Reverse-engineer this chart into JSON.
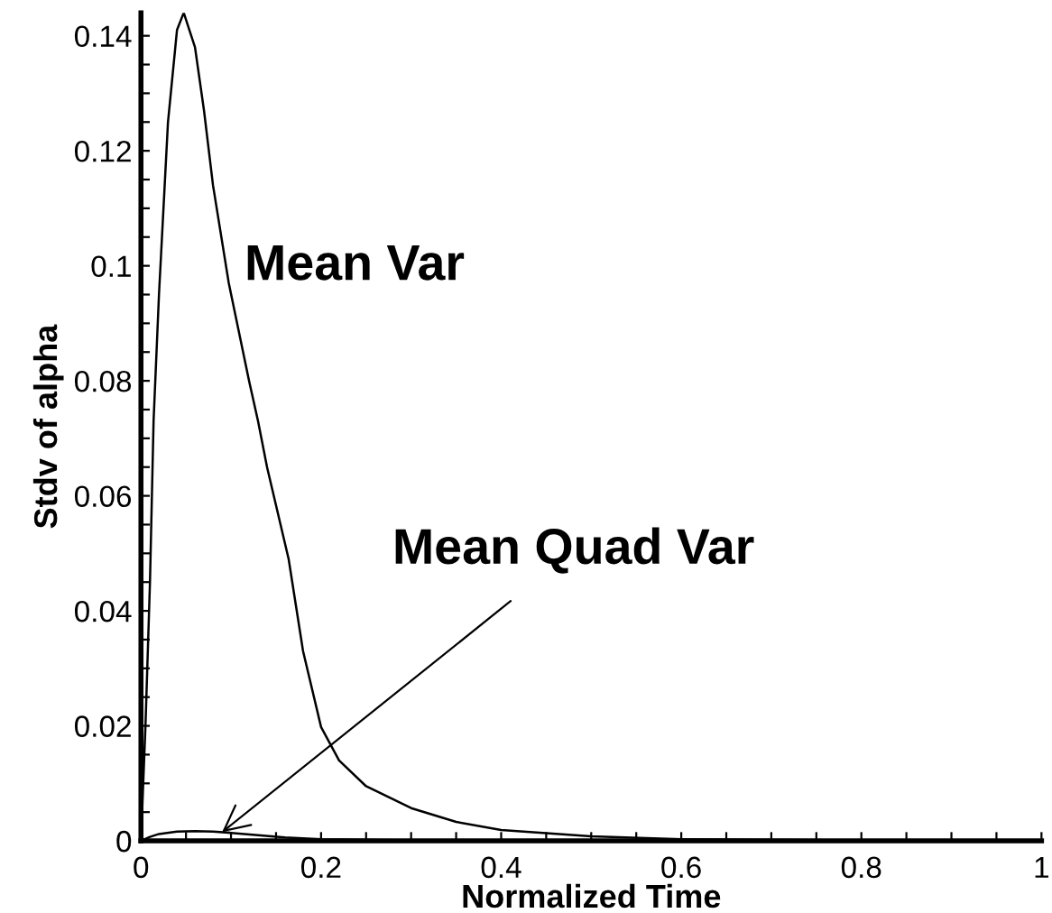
{
  "chart_data": {
    "type": "line",
    "xlabel": "Normalized Time",
    "ylabel": "Stdv of alpha",
    "series": [
      {
        "color": "#000000",
        "x": [
          0,
          0.005,
          0.01,
          0.014,
          0.02,
          0.03,
          0.04,
          0.0475,
          0.06,
          0.07,
          0.08,
          0.0975,
          0.12,
          0.13,
          0.14,
          0.164,
          0.18,
          0.2,
          0.22,
          0.25,
          0.3,
          0.35,
          0.4,
          0.5,
          0.6,
          0.8,
          1
        ],
        "values": [
          0,
          0.02,
          0.045,
          0.073,
          0.095,
          0.125,
          0.141,
          0.144,
          0.138,
          0.127,
          0.114,
          0.097,
          0.08,
          0.073,
          0.065,
          0.049,
          0.033,
          0.0198,
          0.014,
          0.0095,
          0.0057,
          0.0033,
          0.0019,
          0.0008,
          0.0003,
          0.0001,
          0
        ]
      },
      {
        "color": "#000000",
        "x": [
          0,
          0.01,
          0.02,
          0.04,
          0.06,
          0.08,
          0.1,
          0.13,
          0.16,
          0.2,
          0.3,
          0.5,
          1
        ],
        "values": [
          0,
          0.0007,
          0.0012,
          0.0016,
          0.0017,
          0.0016,
          0.0014,
          0.001,
          0.0006,
          0.0003,
          0.0001,
          0,
          0
        ]
      }
    ],
    "xlim": [
      0,
      1
    ],
    "ylim": [
      0,
      0.144
    ],
    "xticks": [
      0,
      {
        "value": 0.05,
        "label": null
      },
      {
        "value": 0.1,
        "label": null
      },
      {
        "value": 0.15,
        "label": null
      },
      0.2,
      {
        "value": 0.25,
        "label": null
      },
      {
        "value": 0.3,
        "label": null
      },
      {
        "value": 0.35,
        "label": null
      },
      0.4,
      {
        "value": 0.45,
        "label": null
      },
      {
        "value": 0.5,
        "label": null
      },
      {
        "value": 0.55,
        "label": null
      },
      0.6,
      {
        "value": 0.65,
        "label": null
      },
      {
        "value": 0.7,
        "label": null
      },
      {
        "value": 0.75,
        "label": null
      },
      0.8,
      {
        "value": 0.85,
        "label": null
      },
      {
        "value": 0.9,
        "label": null
      },
      {
        "value": 0.95,
        "label": null
      },
      1
    ],
    "yticks": [
      0,
      {
        "value": 0.005,
        "label": null
      },
      {
        "value": 0.01,
        "label": null
      },
      {
        "value": 0.015,
        "label": null
      },
      0.02,
      {
        "value": 0.025,
        "label": null
      },
      {
        "value": 0.03,
        "label": null
      },
      {
        "value": 0.035,
        "label": null
      },
      0.04,
      {
        "value": 0.045,
        "label": null
      },
      {
        "value": 0.05,
        "label": null
      },
      {
        "value": 0.055,
        "label": null
      },
      0.06,
      {
        "value": 0.065,
        "label": null
      },
      {
        "value": 0.07,
        "label": null
      },
      {
        "value": 0.075,
        "label": null
      },
      0.08,
      {
        "value": 0.085,
        "label": null
      },
      {
        "value": 0.09,
        "label": null
      },
      {
        "value": 0.095,
        "label": null
      },
      0.1,
      {
        "value": 0.105,
        "label": null
      },
      {
        "value": 0.11,
        "label": null
      },
      {
        "value": 0.115,
        "label": null
      },
      0.12,
      {
        "value": 0.125,
        "label": null
      },
      {
        "value": 0.13,
        "label": null
      },
      {
        "value": 0.135,
        "label": null
      },
      0.14
    ],
    "annotations": [
      "Mean Var",
      {
        "text": "Mean Quad Var",
        "x": 0.09,
        "y": 0.0015
      }
    ],
    "grid": false,
    "legend": false,
    "marker": "none",
    "line_style": "solid"
  }
}
